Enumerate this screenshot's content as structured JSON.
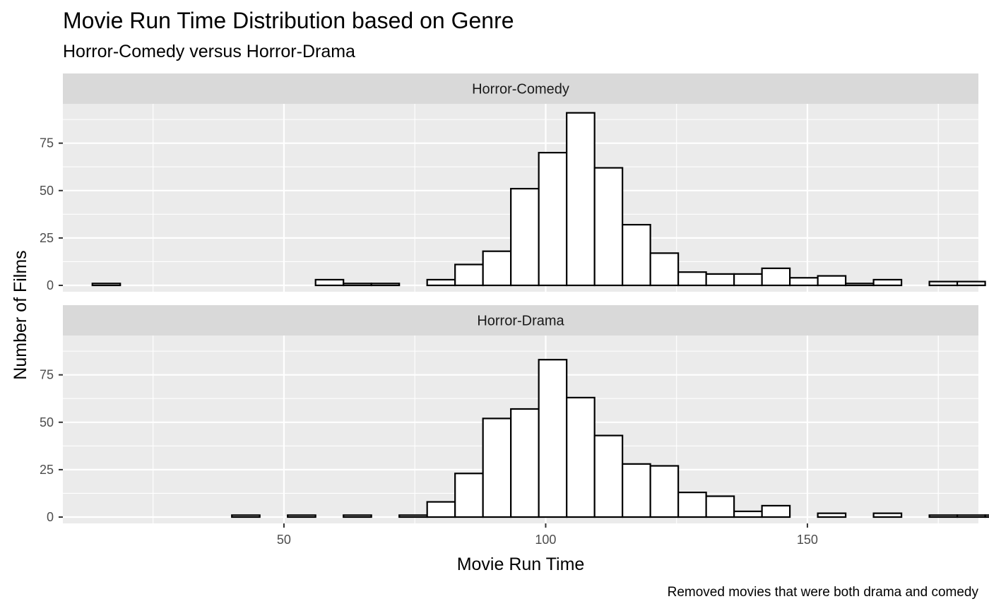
{
  "chart_data": {
    "type": "bar",
    "chart_kind": "histogram",
    "title": "Movie Run Time Distribution based on Genre",
    "subtitle": "Horror-Comedy versus Horror-Drama",
    "xlabel": "Movie Run Time",
    "ylabel": "Number of Films",
    "caption": "Removed movies that were both drama and comedy",
    "xlim": [
      12,
      176
    ],
    "ylim": [
      0,
      95
    ],
    "x_ticks": [
      50,
      100,
      150
    ],
    "y_ticks": [
      0,
      25,
      50,
      75
    ],
    "grid": true,
    "bin_width": 5.33,
    "bin_start": 13.4,
    "facets": [
      {
        "label": "Horror-Comedy",
        "values": [
          1,
          0,
          0,
          0,
          0,
          0,
          0,
          0,
          3,
          1,
          1,
          0,
          3,
          11,
          18,
          51,
          70,
          91,
          62,
          32,
          17,
          7,
          6,
          6,
          9,
          4,
          5,
          1,
          3,
          0,
          2,
          2,
          0
        ]
      },
      {
        "label": "Horror-Drama",
        "values": [
          0,
          0,
          0,
          0,
          0,
          1,
          0,
          1,
          0,
          1,
          0,
          1,
          8,
          23,
          52,
          57,
          83,
          63,
          43,
          28,
          27,
          13,
          11,
          3,
          6,
          0,
          2,
          0,
          2,
          0,
          1,
          1,
          1
        ]
      }
    ]
  },
  "colors": {
    "panel_bg": "#ebebeb",
    "strip_bg": "#d9d9d9",
    "grid": "#ffffff",
    "bar_fill": "#ffffff",
    "bar_stroke": "#000000"
  }
}
